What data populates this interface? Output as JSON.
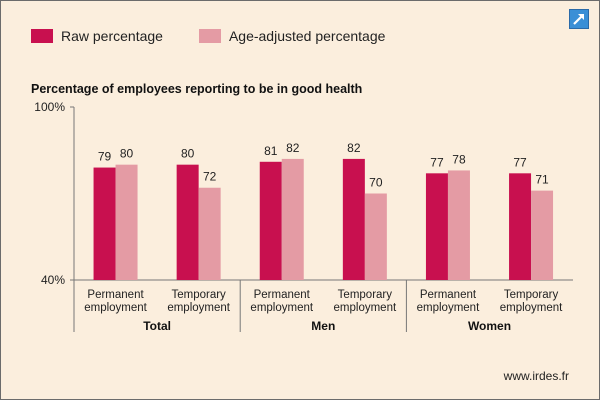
{
  "legend": {
    "raw_label": "Raw percentage",
    "adj_label": "Age-adjusted percentage"
  },
  "colors": {
    "raw": "#c8104f",
    "adj": "#e49ba4",
    "axis": "#777777"
  },
  "footer": {
    "url": "www.irdes.fr"
  },
  "icons": {
    "expand": "expand-arrow-icon"
  },
  "chart_data": {
    "type": "bar",
    "title": "Percentage of employees reporting to be in good health",
    "ylim": [
      40,
      100
    ],
    "y_tick_labels": [
      "100%",
      "40%"
    ],
    "groups": [
      {
        "name": "Total",
        "categories": [
          {
            "line1": "Permanent",
            "line2": "employment",
            "raw": 79,
            "adj": 80
          },
          {
            "line1": "Temporary",
            "line2": "employment",
            "raw": 80,
            "adj": 72
          }
        ]
      },
      {
        "name": "Men",
        "categories": [
          {
            "line1": "Permanent",
            "line2": "employment",
            "raw": 81,
            "adj": 82
          },
          {
            "line1": "Temporary",
            "line2": "employment",
            "raw": 82,
            "adj": 70
          }
        ]
      },
      {
        "name": "Women",
        "categories": [
          {
            "line1": "Permanent",
            "line2": "employment",
            "raw": 77,
            "adj": 78
          },
          {
            "line1": "Temporary",
            "line2": "employment",
            "raw": 77,
            "adj": 71
          }
        ]
      }
    ],
    "series": [
      {
        "name": "Raw percentage",
        "key": "raw"
      },
      {
        "name": "Age-adjusted percentage",
        "key": "adj"
      }
    ]
  }
}
